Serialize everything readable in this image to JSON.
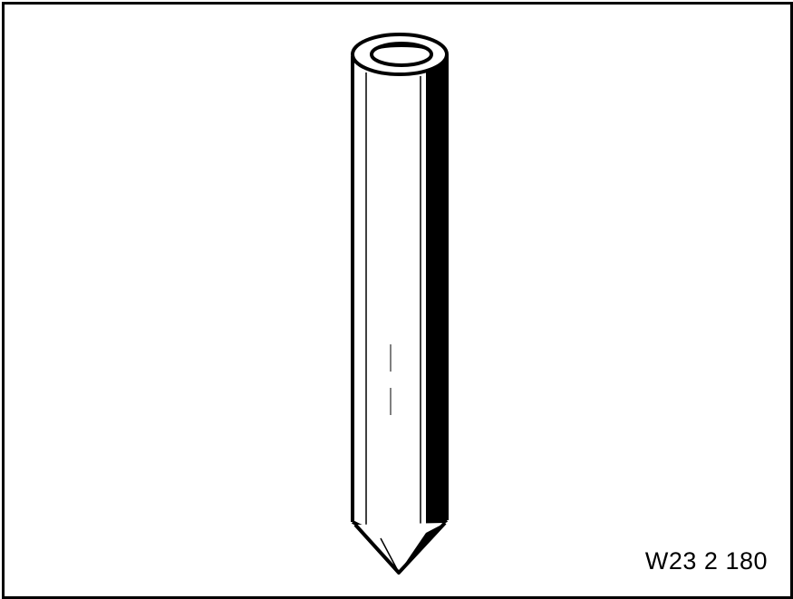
{
  "figure": {
    "code": "W23 2 180",
    "subject_icon": "tubular-pin-drift-icon",
    "line_color": "#000000",
    "background_color": "#ffffff"
  }
}
